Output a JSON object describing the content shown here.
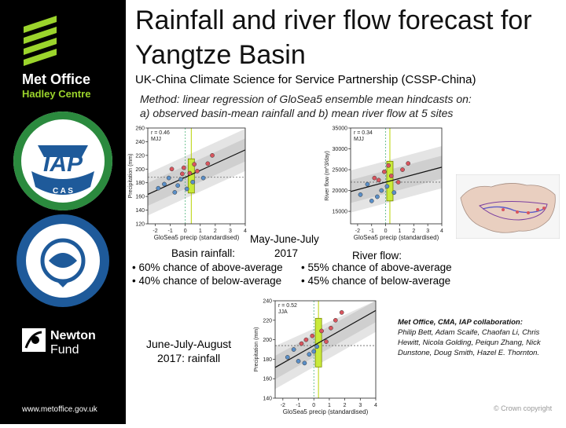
{
  "title": "Rainfall and river flow forecast for Yangtze Basin",
  "subtitle": "UK-China Climate Science for Service Partnership (CSSP-China)",
  "method": {
    "line1": "Method: linear regression of GloSea5 ensemble mean hindcasts on:",
    "line2": "a) observed basin-mean rainfall and b) mean river flow at 5 sites"
  },
  "sidebar": {
    "metoffice_name": "Met Office",
    "metoffice_sub": "Hadley Centre",
    "iap_text": "IAP",
    "cas_text": "C A S",
    "newton_name": "Newton",
    "newton_sub": "Fund",
    "url": "www.metoffice.gov.uk"
  },
  "mjj": {
    "season_label": "May-June-July",
    "season_year": "2017",
    "rain_label": "Basin rainfall:",
    "rain_above": "• 60% chance of above-average",
    "rain_below": "• 40% chance of below-average",
    "flow_label": "River flow:",
    "flow_above": "• 55% chance of above-average",
    "flow_below": "• 45% chance of below-average"
  },
  "jja": {
    "label_line1": "June-July-August",
    "label_line2": "2017: rainfall"
  },
  "collab": {
    "head": "Met Office, CMA, IAP collaboration:",
    "names": "Philip Bett, Adam Scaife, Chaofan Li, Chris Hewitt, Nicola Golding, Peiqun Zhang, Nick Dunstone, Doug Smith, Hazel E. Thornton."
  },
  "copyright": "© Crown copyright",
  "colors": {
    "sidebar": "#000000",
    "green": "#9bd42c",
    "cas_blue": "#1e5a9a",
    "band": "#d0d0d0",
    "forecast": "#c9ea3a",
    "point_red": "#d9555e",
    "point_blue": "#5a8fc8"
  },
  "chart_data": [
    {
      "type": "scatter",
      "name": "mjj-rainfall",
      "xlabel": "GloSea5 precip (standardised)",
      "ylabel": "Precipitation (mm)",
      "xlim": [
        -2.5,
        4
      ],
      "ylim": [
        120,
        260
      ],
      "xticks": [
        -2,
        -1,
        0,
        1,
        2,
        3,
        4
      ],
      "yticks": [
        120,
        140,
        160,
        180,
        200,
        220,
        240,
        260
      ],
      "corr": "r = 0.46",
      "corr2": "MJJ",
      "fit": {
        "slope": 10,
        "intercept": 188
      },
      "forecast_x": 0.4,
      "forecast_range": [
        165,
        215
      ],
      "points": [
        [
          -1.8,
          172
        ],
        [
          -1.4,
          178
        ],
        [
          -1.1,
          187
        ],
        [
          -0.9,
          200
        ],
        [
          -0.7,
          166
        ],
        [
          -0.5,
          176
        ],
        [
          -0.3,
          185
        ],
        [
          -0.2,
          193
        ],
        [
          0.1,
          171
        ],
        [
          0.3,
          194
        ],
        [
          0.6,
          207
        ],
        [
          0.8,
          197
        ],
        [
          1.2,
          187
        ],
        [
          1.5,
          208
        ],
        [
          1.8,
          220
        ],
        [
          -0.1,
          202
        ],
        [
          0.5,
          181
        ]
      ]
    },
    {
      "type": "scatter",
      "name": "mjj-riverflow",
      "xlabel": "GloSea5 precip (standardised)",
      "ylabel": "River flow (m^3/day)",
      "xlim": [
        -2.5,
        4
      ],
      "ylim": [
        12000,
        35000
      ],
      "xticks": [
        -2,
        -1,
        0,
        1,
        2,
        3,
        4
      ],
      "yticks": [
        15000,
        20000,
        25000,
        30000,
        35000
      ],
      "corr": "r = 0.34",
      "corr2": "MJJ",
      "fit": {
        "slope": 900,
        "intercept": 22000
      },
      "forecast_x": 0.3,
      "forecast_range": [
        17500,
        27000
      ],
      "points": [
        [
          -1.8,
          19000
        ],
        [
          -1.3,
          21500
        ],
        [
          -1.0,
          17500
        ],
        [
          -0.8,
          23000
        ],
        [
          -0.5,
          22500
        ],
        [
          -0.3,
          20000
        ],
        [
          -0.1,
          24500
        ],
        [
          0.1,
          21000
        ],
        [
          0.4,
          23500
        ],
        [
          0.6,
          19500
        ],
        [
          0.9,
          22000
        ],
        [
          1.2,
          25000
        ],
        [
          1.6,
          26500
        ],
        [
          -0.6,
          18500
        ],
        [
          0.2,
          26000
        ]
      ]
    },
    {
      "type": "scatter",
      "name": "jja-rainfall",
      "xlabel": "GloSea5 precip (standardised)",
      "ylabel": "Precipitation (mm)",
      "xlim": [
        -2.5,
        4
      ],
      "ylim": [
        140,
        240
      ],
      "xticks": [
        -2,
        -1,
        0,
        1,
        2,
        3,
        4
      ],
      "yticks": [
        140,
        160,
        180,
        200,
        220,
        240
      ],
      "corr": "r = 0.52",
      "corr2": "JJA",
      "fit": {
        "slope": 9,
        "intercept": 194
      },
      "forecast_x": 0.3,
      "forecast_range": [
        172,
        222
      ],
      "points": [
        [
          -1.7,
          182
        ],
        [
          -1.3,
          190
        ],
        [
          -1.0,
          178
        ],
        [
          -0.8,
          196
        ],
        [
          -0.5,
          200
        ],
        [
          -0.3,
          185
        ],
        [
          -0.1,
          204
        ],
        [
          0.2,
          193
        ],
        [
          0.5,
          209
        ],
        [
          0.8,
          198
        ],
        [
          1.1,
          212
        ],
        [
          1.4,
          220
        ],
        [
          1.8,
          228
        ],
        [
          -0.6,
          176
        ],
        [
          0.0,
          188
        ]
      ]
    }
  ]
}
